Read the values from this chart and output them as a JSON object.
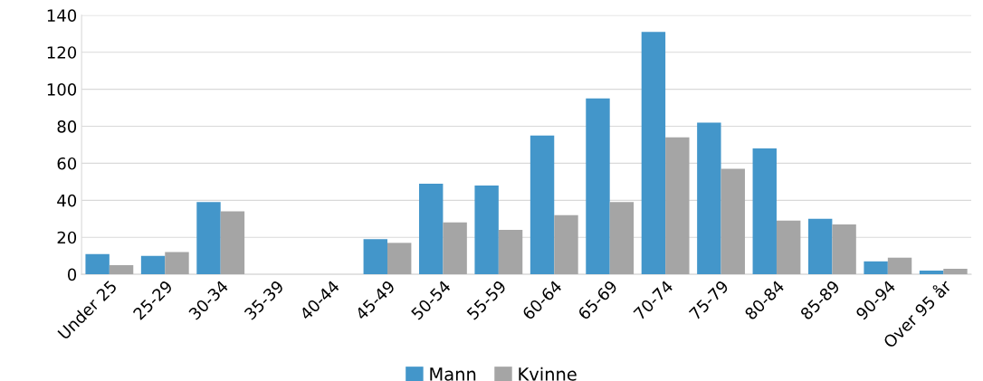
{
  "chart_data": {
    "type": "bar",
    "categories": [
      "Under 25",
      "25-29",
      "30-34",
      "35-39",
      "40-44",
      "45-49",
      "50-54",
      "55-59",
      "60-64",
      "65-69",
      "70-74",
      "75-79",
      "80-84",
      "85-89",
      "90-94",
      "Over 95 år"
    ],
    "series": [
      {
        "name": "Mann",
        "color": "#4396ca",
        "values": [
          11,
          10,
          39,
          0,
          0,
          19,
          49,
          48,
          75,
          95,
          131,
          82,
          68,
          30,
          7,
          2
        ]
      },
      {
        "name": "Kvinne",
        "color": "#a5a5a5",
        "values": [
          5,
          12,
          34,
          0,
          0,
          17,
          28,
          24,
          32,
          39,
          74,
          57,
          29,
          27,
          9,
          3
        ]
      }
    ],
    "ylim": [
      0,
      140
    ],
    "yticks": [
      0,
      20,
      40,
      60,
      80,
      100,
      120,
      140
    ],
    "grid": "y",
    "legend": "bottom"
  }
}
